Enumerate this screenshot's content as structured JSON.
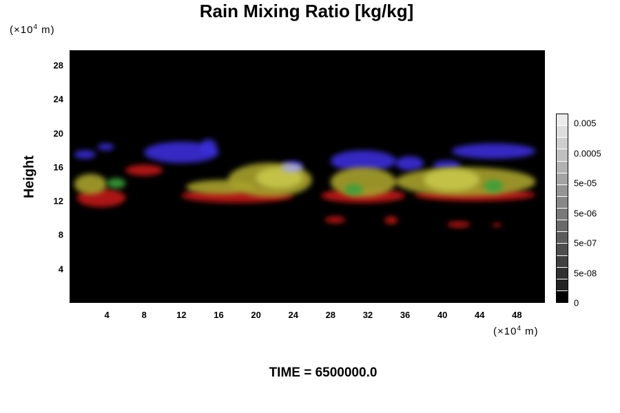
{
  "chart_data": {
    "type": "heatmap",
    "title": "Rain Mixing Ratio [kg/kg]",
    "ylabel": "Height",
    "x_unit": "(×10⁴ m)",
    "y_unit": "(×10⁴ m)",
    "x_ticks": [
      "4",
      "8",
      "12",
      "16",
      "20",
      "24",
      "28",
      "32",
      "36",
      "40",
      "44",
      "48"
    ],
    "y_ticks": [
      "4",
      "8",
      "12",
      "16",
      "20",
      "24",
      "28"
    ],
    "xlim": [
      0,
      51
    ],
    "ylim": [
      0,
      29.8
    ],
    "colorbar": {
      "labels": [
        "0.005",
        "0.0005",
        "5e-05",
        "5e-06",
        "5e-07",
        "5e-08",
        "0"
      ],
      "segments": 16
    },
    "layers": [
      {
        "color": "#3a2dd8",
        "regions": [
          {
            "x": [
              0.5,
              2.8
            ],
            "y": [
              17.0,
              18.0
            ]
          },
          {
            "x": [
              3.0,
              4.8
            ],
            "y": [
              18.0,
              18.8
            ]
          },
          {
            "x": [
              8.0,
              16.0
            ],
            "y": [
              16.5,
              19.0
            ]
          },
          {
            "x": [
              14.0,
              15.8
            ],
            "y": [
              17.5,
              19.3
            ]
          },
          {
            "x": [
              22.8,
              25.0
            ],
            "y": [
              15.7,
              16.7
            ]
          },
          {
            "x": [
              28.0,
              35.0
            ],
            "y": [
              15.5,
              18.0
            ]
          },
          {
            "x": [
              35.0,
              38.0
            ],
            "y": [
              15.6,
              17.3
            ]
          },
          {
            "x": [
              39.0,
              42.0
            ],
            "y": [
              15.6,
              16.8
            ]
          },
          {
            "x": [
              41.0,
              50.0
            ],
            "y": [
              17.0,
              18.8
            ]
          }
        ]
      },
      {
        "color": "#c01a1a",
        "regions": [
          {
            "x": [
              0.8,
              6.0
            ],
            "y": [
              11.3,
              13.5
            ]
          },
          {
            "x": [
              6.0,
              10.0
            ],
            "y": [
              15.0,
              16.3
            ]
          },
          {
            "x": [
              12.0,
              24.0
            ],
            "y": [
              11.8,
              13.5
            ]
          },
          {
            "x": [
              27.0,
              36.0
            ],
            "y": [
              11.8,
              13.5
            ]
          },
          {
            "x": [
              37.0,
              50.0
            ],
            "y": [
              12.0,
              13.5
            ]
          },
          {
            "x": [
              27.4,
              29.6
            ],
            "y": [
              9.4,
              10.2
            ]
          },
          {
            "x": [
              33.8,
              35.2
            ],
            "y": [
              9.3,
              10.2
            ]
          },
          {
            "x": [
              40.5,
              43.0
            ],
            "y": [
              8.9,
              9.6
            ]
          },
          {
            "x": [
              45.3,
              46.4
            ],
            "y": [
              9.0,
              9.4
            ]
          }
        ]
      },
      {
        "color": "#a7a12c",
        "regions": [
          {
            "x": [
              0.5,
              4.0
            ],
            "y": [
              12.8,
              15.2
            ]
          },
          {
            "x": [
              12.5,
              20.0
            ],
            "y": [
              12.8,
              14.5
            ]
          },
          {
            "x": [
              17.0,
              26.0
            ],
            "y": [
              12.5,
              16.5
            ]
          },
          {
            "x": [
              28.0,
              35.0
            ],
            "y": [
              12.5,
              16.0
            ]
          },
          {
            "x": [
              35.0,
              50.0
            ],
            "y": [
              12.6,
              16.0
            ]
          }
        ]
      },
      {
        "color": "#c8c84a",
        "regions": [
          {
            "x": [
              20.0,
              25.0
            ],
            "y": [
              13.5,
              16.0
            ]
          },
          {
            "x": [
              38.0,
              44.0
            ],
            "y": [
              13.2,
              15.8
            ]
          }
        ]
      },
      {
        "color": "#3ca03c",
        "regions": [
          {
            "x": [
              4.0,
              6.0
            ],
            "y": [
              13.5,
              14.7
            ]
          },
          {
            "x": [
              29.5,
              31.5
            ],
            "y": [
              12.7,
              14.0
            ]
          },
          {
            "x": [
              44.5,
              46.5
            ],
            "y": [
              13.0,
              14.5
            ]
          }
        ]
      },
      {
        "color": "#a9a9e8",
        "regions": [
          {
            "x": [
              22.7,
              25.0
            ],
            "y": [
              15.4,
              16.4
            ]
          }
        ]
      }
    ]
  },
  "time_label": "TIME = 6500000.0"
}
